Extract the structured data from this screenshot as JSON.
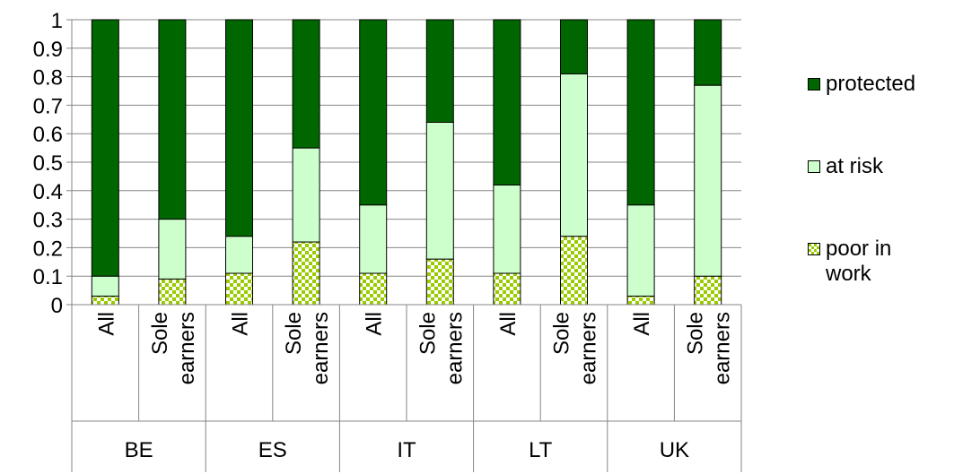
{
  "chart_data": {
    "type": "bar",
    "stacked": true,
    "title": "",
    "xlabel": "",
    "ylabel": "",
    "ylim": [
      0,
      1
    ],
    "yticks": [
      "0",
      "0.1",
      "0.2",
      "0.3",
      "0.4",
      "0.5",
      "0.6",
      "0.7",
      "0.8",
      "0.9",
      "1"
    ],
    "grid": true,
    "legend_position": "right",
    "groups": [
      "BE",
      "ES",
      "IT",
      "LT",
      "UK"
    ],
    "subcategories": [
      "All",
      "Sole earners"
    ],
    "categories": [
      {
        "group": "BE",
        "label": "All"
      },
      {
        "group": "BE",
        "label": "Sole earners"
      },
      {
        "group": "ES",
        "label": "All"
      },
      {
        "group": "ES",
        "label": "Sole earners"
      },
      {
        "group": "IT",
        "label": "All"
      },
      {
        "group": "IT",
        "label": "Sole earners"
      },
      {
        "group": "LT",
        "label": "All"
      },
      {
        "group": "LT",
        "label": "Sole earners"
      },
      {
        "group": "UK",
        "label": "All"
      },
      {
        "group": "UK",
        "label": "Sole earners"
      }
    ],
    "series": [
      {
        "name": "poor in work",
        "color": "#99cc00",
        "pattern": "checker",
        "values": [
          0.03,
          0.09,
          0.11,
          0.22,
          0.11,
          0.16,
          0.11,
          0.24,
          0.03,
          0.1
        ]
      },
      {
        "name": "at risk",
        "color": "#ccffcc",
        "values": [
          0.07,
          0.21,
          0.13,
          0.33,
          0.24,
          0.48,
          0.31,
          0.57,
          0.32,
          0.67
        ]
      },
      {
        "name": "protected",
        "color": "#006600",
        "values": [
          0.9,
          0.7,
          0.76,
          0.45,
          0.65,
          0.36,
          0.58,
          0.19,
          0.65,
          0.23
        ]
      }
    ],
    "legend_order": [
      "protected",
      "at risk",
      "poor in work"
    ]
  }
}
